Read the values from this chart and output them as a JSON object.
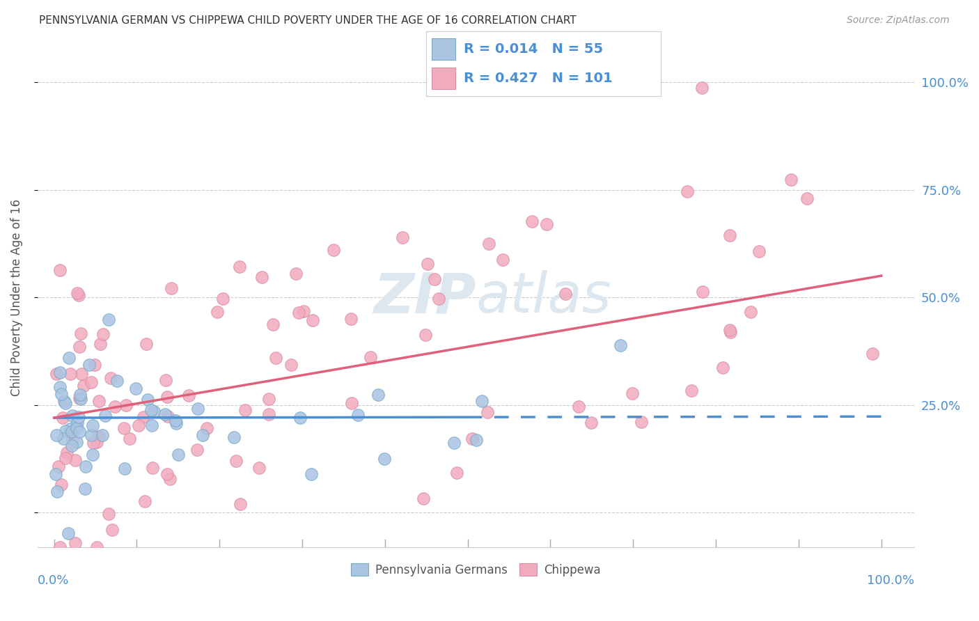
{
  "title": "PENNSYLVANIA GERMAN VS CHIPPEWA CHILD POVERTY UNDER THE AGE OF 16 CORRELATION CHART",
  "source": "Source: ZipAtlas.com",
  "xlabel_bottom_left": "0.0%",
  "xlabel_bottom_right": "100.0%",
  "ylabel": "Child Poverty Under the Age of 16",
  "legend_label_blue": "Pennsylvania Germans",
  "legend_label_pink": "Chippewa",
  "R_blue": 0.014,
  "N_blue": 55,
  "R_pink": 0.427,
  "N_pink": 101,
  "color_blue": "#aac4e2",
  "color_pink": "#f2abbe",
  "line_color_blue": "#4a8fd4",
  "line_color_pink": "#e0607a",
  "text_color_blue": "#4a8fd4",
  "title_color": "#333333",
  "source_color": "#999999",
  "background_color": "#ffffff",
  "grid_color": "#cccccc",
  "watermark_color": "#dce7f0",
  "ytick_positions": [
    0,
    25,
    50,
    75,
    100
  ],
  "ytick_labels_right": [
    "",
    "25.0%",
    "50.0%",
    "75.0%",
    "100.0%"
  ],
  "pink_line_y_start": 22,
  "pink_line_y_end": 55,
  "blue_line_y_start": 22,
  "blue_line_y_end": 22.3,
  "blue_line_solid_end_x": 50,
  "xlim": [
    -2,
    104
  ],
  "ylim": [
    -8,
    108
  ]
}
